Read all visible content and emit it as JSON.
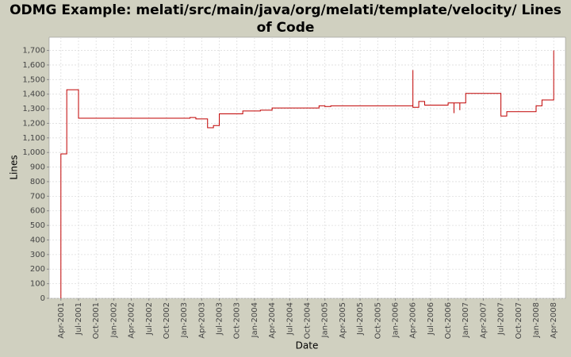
{
  "chart_data": {
    "type": "line",
    "step": true,
    "title": "ODMG Example: melati/src/main/java/org/melati/template/velocity/ Lines of Code",
    "x_label": "Date",
    "y_label": "Lines",
    "x": [
      "2001-04",
      "2001-04",
      "2001-05",
      "2001-07",
      "2003-02",
      "2003-03",
      "2003-05",
      "2003-06",
      "2003-07",
      "2003-11",
      "2004-02",
      "2004-04",
      "2004-12",
      "2005-01",
      "2005-02",
      "2006-04",
      "2006-04",
      "2006-05",
      "2006-06",
      "2006-10",
      "2006-11",
      "2006-11",
      "2006-12",
      "2006-12",
      "2007-01",
      "2007-07",
      "2007-08",
      "2008-01",
      "2008-02",
      "2008-04",
      "2008-04",
      "2008-04"
    ],
    "series": [
      {
        "name": "Lines",
        "color": "#c00000",
        "values": [
          0,
          990,
          1430,
          1235,
          1240,
          1230,
          1170,
          1185,
          1265,
          1285,
          1290,
          1305,
          1320,
          1315,
          1320,
          1565,
          1310,
          1350,
          1325,
          1340,
          1270,
          1340,
          1290,
          1340,
          1405,
          1250,
          1280,
          1320,
          1360,
          1650,
          1700,
          1640
        ]
      }
    ],
    "xlim": [
      "2001-02",
      "2008-06"
    ],
    "xticks": [
      {
        "value": "2001-04",
        "label": "Apr-2001"
      },
      {
        "value": "2001-07",
        "label": "Jul-2001"
      },
      {
        "value": "2001-10",
        "label": "Oct-2001"
      },
      {
        "value": "2002-01",
        "label": "Jan-2002"
      },
      {
        "value": "2002-04",
        "label": "Apr-2002"
      },
      {
        "value": "2002-07",
        "label": "Jul-2002"
      },
      {
        "value": "2002-10",
        "label": "Oct-2002"
      },
      {
        "value": "2003-01",
        "label": "Jan-2003"
      },
      {
        "value": "2003-04",
        "label": "Apr-2003"
      },
      {
        "value": "2003-07",
        "label": "Jul-2003"
      },
      {
        "value": "2003-10",
        "label": "Oct-2003"
      },
      {
        "value": "2004-01",
        "label": "Jan-2004"
      },
      {
        "value": "2004-04",
        "label": "Apr-2004"
      },
      {
        "value": "2004-07",
        "label": "Jul-2004"
      },
      {
        "value": "2004-10",
        "label": "Oct-2004"
      },
      {
        "value": "2005-01",
        "label": "Jan-2005"
      },
      {
        "value": "2005-04",
        "label": "Apr-2005"
      },
      {
        "value": "2005-07",
        "label": "Jul-2005"
      },
      {
        "value": "2005-10",
        "label": "Oct-2005"
      },
      {
        "value": "2006-01",
        "label": "Jan-2006"
      },
      {
        "value": "2006-04",
        "label": "Apr-2006"
      },
      {
        "value": "2006-07",
        "label": "Jul-2006"
      },
      {
        "value": "2006-10",
        "label": "Oct-2006"
      },
      {
        "value": "2007-01",
        "label": "Jan-2007"
      },
      {
        "value": "2007-04",
        "label": "Apr-2007"
      },
      {
        "value": "2007-07",
        "label": "Jul-2007"
      },
      {
        "value": "2007-10",
        "label": "Oct-2007"
      },
      {
        "value": "2008-01",
        "label": "Jan-2008"
      },
      {
        "value": "2008-04",
        "label": "Apr-2008"
      }
    ],
    "ylim": [
      0,
      1790
    ],
    "yticks": [
      0,
      100,
      200,
      300,
      400,
      500,
      600,
      700,
      800,
      900,
      {
        "value": 1000,
        "label": "1,000"
      },
      {
        "value": 1100,
        "label": "1,100"
      },
      {
        "value": 1200,
        "label": "1,200"
      },
      {
        "value": 1300,
        "label": "1,300"
      },
      {
        "value": 1400,
        "label": "1,400"
      },
      {
        "value": 1500,
        "label": "1,500"
      },
      {
        "value": 1600,
        "label": "1,600"
      },
      {
        "value": 1700,
        "label": "1,700"
      }
    ],
    "grid": true
  }
}
